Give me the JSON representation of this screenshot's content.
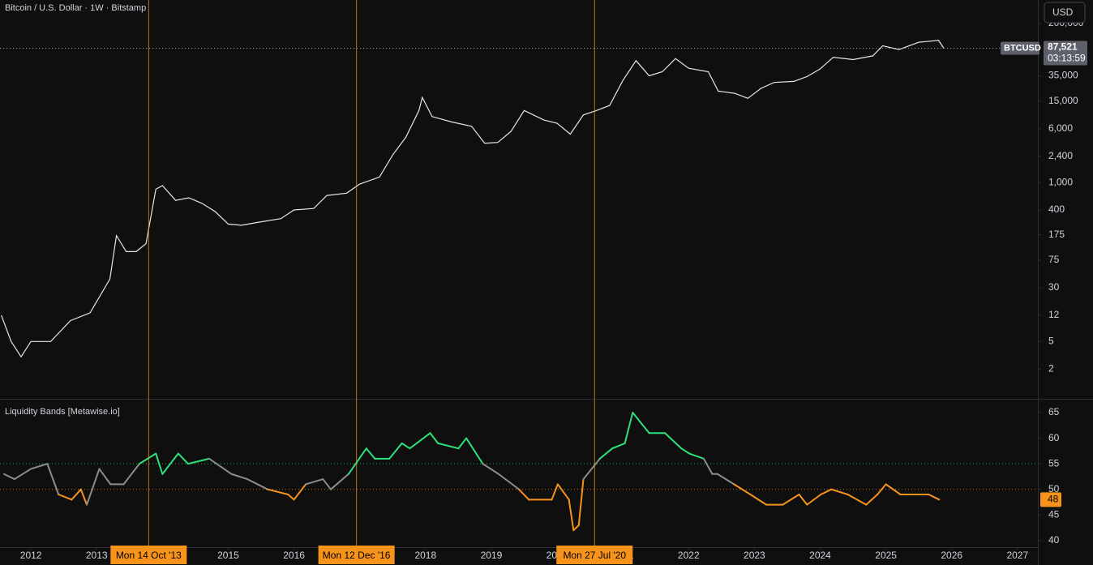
{
  "header": {
    "title": "Bitcoin / U.S. Dollar · 1W · Bitstamp",
    "currency_button": "USD"
  },
  "chart_data": [
    {
      "type": "line",
      "log_scale": true,
      "color": "#e6e6e6",
      "x": [
        2011.55,
        2011.7,
        2011.85,
        2012.0,
        2012.3,
        2012.6,
        2012.9,
        2013.2,
        2013.3,
        2013.45,
        2013.6,
        2013.75,
        2013.9,
        2014.0,
        2014.2,
        2014.4,
        2014.6,
        2014.8,
        2015.0,
        2015.2,
        2015.5,
        2015.8,
        2016.0,
        2016.3,
        2016.5,
        2016.8,
        2017.0,
        2017.3,
        2017.5,
        2017.7,
        2017.9,
        2017.95,
        2018.1,
        2018.4,
        2018.7,
        2018.9,
        2019.1,
        2019.3,
        2019.5,
        2019.8,
        2020.0,
        2020.2,
        2020.4,
        2020.6,
        2020.8,
        2021.0,
        2021.2,
        2021.4,
        2021.6,
        2021.8,
        2022.0,
        2022.3,
        2022.45,
        2022.7,
        2022.9,
        2023.1,
        2023.3,
        2023.6,
        2023.8,
        2024.0,
        2024.2,
        2024.5,
        2024.8,
        2024.95,
        2025.2,
        2025.5,
        2025.8,
        2025.88
      ],
      "values": [
        12,
        5,
        3,
        5,
        5,
        10,
        13,
        40,
        170,
        100,
        100,
        130,
        800,
        900,
        550,
        600,
        500,
        380,
        250,
        240,
        270,
        300,
        400,
        420,
        650,
        700,
        950,
        1200,
        2500,
        4500,
        11000,
        17000,
        9000,
        7500,
        6500,
        3700,
        3800,
        5500,
        11000,
        8000,
        7200,
        5000,
        9500,
        11000,
        13000,
        30000,
        58000,
        35000,
        40000,
        62000,
        45000,
        40000,
        21000,
        19500,
        16500,
        23000,
        28000,
        29000,
        34000,
        44000,
        65000,
        60000,
        68000,
        95000,
        84000,
        107000,
        114000,
        87521
      ],
      "xlim": [
        2011.53,
        2027.31
      ],
      "ylim": [
        0.74,
        437000
      ],
      "yticks": [
        2,
        5,
        12,
        30,
        75,
        175,
        400,
        {
          "value": 1000,
          "label": "1,000"
        },
        {
          "value": 2400,
          "label": "2,400"
        },
        {
          "value": 6000,
          "label": "6,000"
        },
        {
          "value": 15000,
          "label": "15,000"
        },
        {
          "value": 35000,
          "label": "35,000"
        },
        {
          "value": 200000,
          "label": "200,000"
        }
      ],
      "price_label": {
        "name": "BTCUSD",
        "value": 87521,
        "label": "87,521",
        "countdown": "03:13:59"
      }
    },
    {
      "type": "banded-line",
      "title": "Liquidity Bands [Metawise.io]",
      "colors": {
        "above": "#2ee07a",
        "below": "#f7931a",
        "neutral": "#8c8c8c"
      },
      "bands": [
        {
          "value": 55,
          "color": "#2ee07a"
        },
        {
          "value": 50,
          "color": "#f7931a"
        }
      ],
      "x": [
        2011.59,
        2011.75,
        2012.0,
        2012.25,
        2012.42,
        2012.62,
        2012.76,
        2012.85,
        2013.04,
        2013.21,
        2013.41,
        2013.65,
        2013.9,
        2014.0,
        2014.24,
        2014.39,
        2014.71,
        2015.05,
        2015.29,
        2015.6,
        2015.91,
        2016.0,
        2016.18,
        2016.44,
        2016.56,
        2016.83,
        2017.1,
        2017.23,
        2017.45,
        2017.64,
        2017.76,
        2018.07,
        2018.19,
        2018.5,
        2018.62,
        2018.87,
        2019.11,
        2019.42,
        2019.57,
        2019.92,
        2020.01,
        2020.18,
        2020.25,
        2020.33,
        2020.4,
        2020.65,
        2020.84,
        2021.03,
        2021.15,
        2021.4,
        2021.64,
        2021.89,
        2022.01,
        2022.23,
        2022.36,
        2022.44,
        2022.69,
        2022.94,
        2023.18,
        2023.43,
        2023.68,
        2023.8,
        2024.01,
        2024.17,
        2024.42,
        2024.7,
        2024.87,
        2025.0,
        2025.22,
        2025.53,
        2025.65,
        2025.81
      ],
      "values": [
        53,
        52,
        54,
        55,
        49,
        48,
        50,
        47,
        54,
        51,
        51,
        55,
        57,
        53,
        57,
        55,
        56,
        53,
        52,
        50,
        49,
        48,
        51,
        52,
        50,
        53,
        58,
        56,
        56,
        59,
        58,
        61,
        59,
        58,
        60,
        55,
        53,
        50,
        48,
        48,
        51,
        48,
        42,
        43,
        52,
        56,
        58,
        59,
        65,
        61,
        61,
        58,
        57,
        56,
        53,
        53,
        51,
        49,
        47,
        47,
        49,
        47,
        49,
        50,
        49,
        47,
        49,
        51,
        49,
        49,
        49,
        48
      ],
      "last_value": 48,
      "xlim": [
        2011.53,
        2027.31
      ],
      "ylim": [
        38.7,
        67.7
      ],
      "yticks": [
        40,
        45,
        50,
        55,
        60,
        65
      ],
      "xticks": [
        2012,
        2013,
        2014,
        2015,
        2016,
        2017,
        2018,
        2019,
        2020,
        2021,
        2022,
        2023,
        2024,
        2025,
        2026,
        2027
      ],
      "markers": [
        {
          "x": 2013.79,
          "label": "Mon 14 Oct '13"
        },
        {
          "x": 2016.95,
          "label": "Mon 12 Dec '16"
        },
        {
          "x": 2020.57,
          "label": "Mon 27 Jul '20"
        }
      ]
    }
  ]
}
